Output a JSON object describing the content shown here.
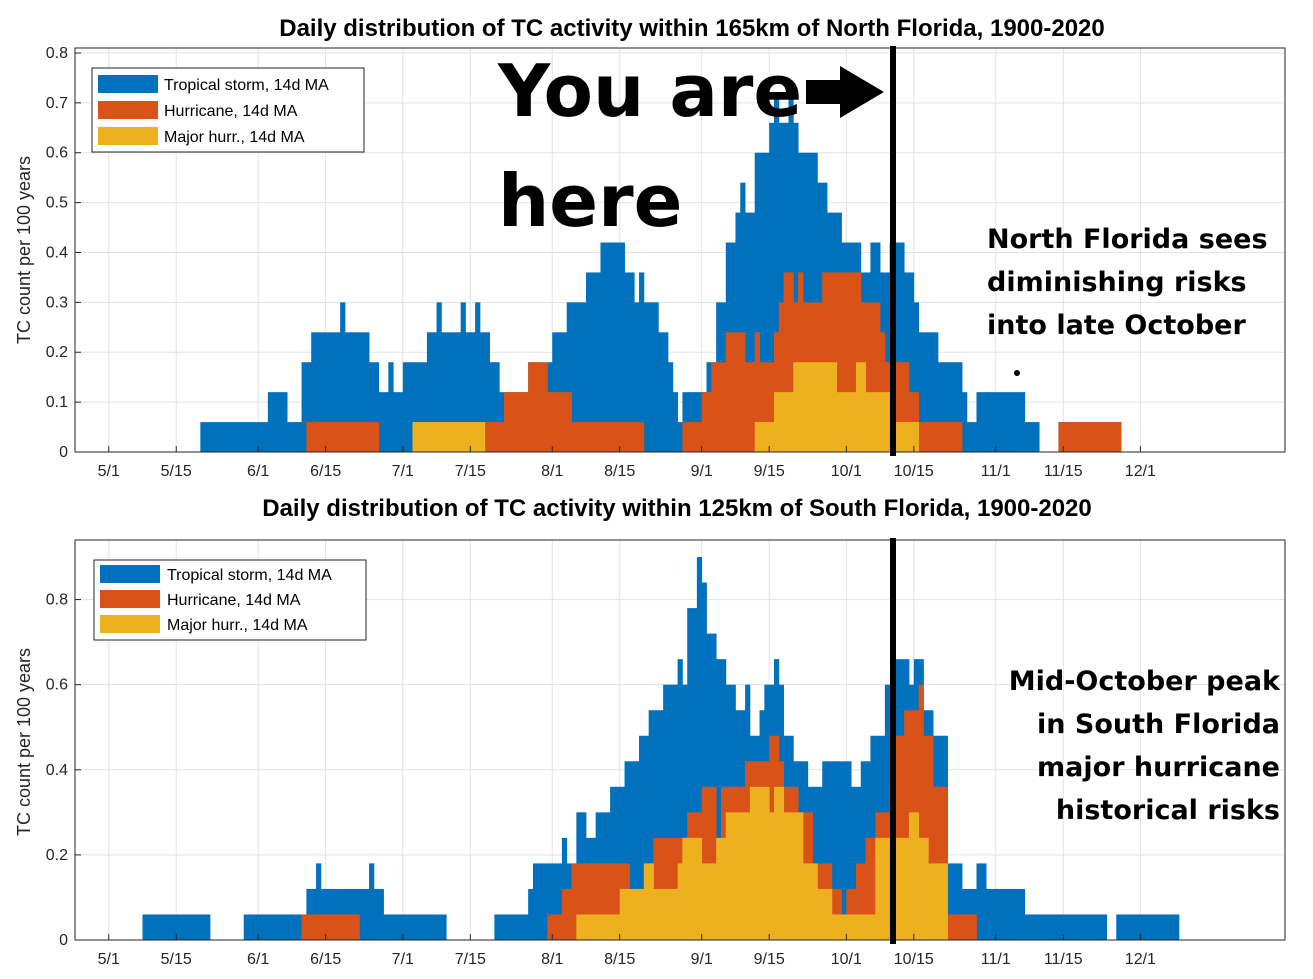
{
  "colors": {
    "ts": "#0072BD",
    "hu": "#D95319",
    "mh": "#EDB120"
  },
  "chart_data": [
    {
      "type": "bar",
      "title": "Daily distribution of TC activity within 165km of North Florida, 1900-2020",
      "xlabel": "",
      "ylabel": "TC count per 100 years",
      "x_start_date": "4/24",
      "x_end_date": "12/31",
      "x_ticks": [
        "5/1",
        "5/15",
        "6/1",
        "6/15",
        "7/1",
        "7/15",
        "8/1",
        "8/15",
        "9/1",
        "9/15",
        "10/1",
        "10/15",
        "11/1",
        "11/15",
        "12/1"
      ],
      "y_ticks": [
        "0",
        "0.1",
        "0.2",
        "0.3",
        "0.4",
        "0.5",
        "0.6",
        "0.7",
        "0.8"
      ],
      "ylim": [
        0,
        0.81
      ],
      "legend_position": "top-left",
      "grid": true,
      "series": [
        {
          "name": "Tropical storm, 14d MA",
          "key": "ts",
          "segments": [
            [
              "5/20",
              0.06
            ],
            [
              "6/3",
              0.12
            ],
            [
              "6/7",
              0.06
            ],
            [
              "6/10",
              0.18
            ],
            [
              "6/12",
              0.24
            ],
            [
              "6/18",
              0.3
            ],
            [
              "6/19",
              0.24
            ],
            [
              "6/24",
              0.18
            ],
            [
              "6/26",
              0.12
            ],
            [
              "6/28",
              0.18
            ],
            [
              "6/29",
              0.12
            ],
            [
              "7/1",
              0.18
            ],
            [
              "7/6",
              0.24
            ],
            [
              "7/8",
              0.3
            ],
            [
              "7/9",
              0.24
            ],
            [
              "7/13",
              0.3
            ],
            [
              "7/14",
              0.24
            ],
            [
              "7/16",
              0.3
            ],
            [
              "7/17",
              0.24
            ],
            [
              "7/19",
              0.18
            ],
            [
              "7/21",
              0.12
            ],
            [
              "7/27",
              0.18
            ],
            [
              "7/30",
              0.12
            ],
            [
              "7/31",
              0.18
            ],
            [
              "8/1",
              0.24
            ],
            [
              "8/4",
              0.3
            ],
            [
              "8/8",
              0.36
            ],
            [
              "8/11",
              0.42
            ],
            [
              "8/16",
              0.36
            ],
            [
              "8/18",
              0.3
            ],
            [
              "8/19",
              0.36
            ],
            [
              "8/20",
              0.3
            ],
            [
              "8/23",
              0.24
            ],
            [
              "8/25",
              0.18
            ],
            [
              "8/26",
              0.12
            ],
            [
              "8/27",
              0.06
            ],
            [
              "8/28",
              0.12
            ],
            [
              "9/2",
              0.18
            ],
            [
              "9/4",
              0.3
            ],
            [
              "9/6",
              0.42
            ],
            [
              "9/8",
              0.48
            ],
            [
              "9/9",
              0.54
            ],
            [
              "9/10",
              0.48
            ],
            [
              "9/12",
              0.6
            ],
            [
              "9/15",
              0.66
            ],
            [
              "9/16",
              0.72
            ],
            [
              "9/17",
              0.66
            ],
            [
              "9/19",
              0.72
            ],
            [
              "9/20",
              0.66
            ],
            [
              "9/21",
              0.6
            ],
            [
              "9/25",
              0.54
            ],
            [
              "9/27",
              0.48
            ],
            [
              "9/30",
              0.42
            ],
            [
              "10/4",
              0.36
            ],
            [
              "10/6",
              0.42
            ],
            [
              "10/8",
              0.36
            ],
            [
              "10/10",
              0.42
            ],
            [
              "10/13",
              0.36
            ],
            [
              "10/15",
              0.3
            ],
            [
              "10/16",
              0.24
            ],
            [
              "10/20",
              0.18
            ],
            [
              "10/25",
              0.12
            ],
            [
              "10/26",
              0.06
            ],
            [
              "10/28",
              0.12
            ],
            [
              "11/7",
              0.06
            ],
            [
              "11/10",
              null
            ],
            [
              "11/14",
              0.06
            ],
            [
              "11/27",
              null
            ]
          ]
        },
        {
          "name": "Hurricane, 14d MA",
          "key": "hu",
          "segments": [
            [
              "6/11",
              0.06
            ],
            [
              "6/26",
              null
            ],
            [
              "7/18",
              0.06
            ],
            [
              "7/22",
              0.12
            ],
            [
              "7/27",
              0.18
            ],
            [
              "7/31",
              0.12
            ],
            [
              "8/5",
              0.06
            ],
            [
              "8/20",
              null
            ],
            [
              "8/28",
              0.06
            ],
            [
              "9/1",
              0.12
            ],
            [
              "9/3",
              0.18
            ],
            [
              "9/6",
              0.24
            ],
            [
              "9/10",
              0.18
            ],
            [
              "9/12",
              0.24
            ],
            [
              "9/13",
              0.18
            ],
            [
              "9/16",
              0.24
            ],
            [
              "9/17",
              0.3
            ],
            [
              "9/18",
              0.36
            ],
            [
              "9/20",
              0.3
            ],
            [
              "9/21",
              0.36
            ],
            [
              "9/22",
              0.3
            ],
            [
              "9/26",
              0.36
            ],
            [
              "10/4",
              0.3
            ],
            [
              "10/8",
              0.24
            ],
            [
              "10/9",
              0.18
            ],
            [
              "10/14",
              0.12
            ],
            [
              "10/16",
              0.06
            ],
            [
              "10/25",
              null
            ],
            [
              "11/14",
              0.06
            ],
            [
              "11/27",
              null
            ]
          ]
        },
        {
          "name": "Major hurr., 14d MA",
          "key": "mh",
          "segments": [
            [
              "7/3",
              0.06
            ],
            [
              "7/18",
              null
            ],
            [
              "9/12",
              0.06
            ],
            [
              "9/16",
              0.12
            ],
            [
              "9/20",
              0.18
            ],
            [
              "9/29",
              0.12
            ],
            [
              "10/3",
              0.18
            ],
            [
              "10/5",
              0.12
            ],
            [
              "10/11",
              0.06
            ],
            [
              "10/16",
              null
            ]
          ]
        }
      ]
    },
    {
      "type": "bar",
      "title": "Daily distribution of TC activity within 125km of South Florida, 1900-2020",
      "xlabel": "",
      "ylabel": "TC count per 100 years",
      "x_start_date": "4/24",
      "x_end_date": "12/31",
      "x_ticks": [
        "5/1",
        "5/15",
        "6/1",
        "6/15",
        "7/1",
        "7/15",
        "8/1",
        "8/15",
        "9/1",
        "9/15",
        "10/1",
        "10/15",
        "11/1",
        "11/15",
        "12/1"
      ],
      "y_ticks": [
        "0",
        "0.2",
        "0.4",
        "0.6",
        "0.8"
      ],
      "ylim": [
        0,
        0.94
      ],
      "legend_position": "top-left",
      "grid": true,
      "series": [
        {
          "name": "Tropical storm, 14d MA",
          "key": "ts",
          "segments": [
            [
              "5/8",
              0.06
            ],
            [
              "5/22",
              null
            ],
            [
              "5/29",
              0.06
            ],
            [
              "6/11",
              0.12
            ],
            [
              "6/13",
              0.18
            ],
            [
              "6/14",
              0.12
            ],
            [
              "6/24",
              0.18
            ],
            [
              "6/25",
              0.12
            ],
            [
              "6/27",
              0.06
            ],
            [
              "7/10",
              null
            ],
            [
              "7/20",
              0.06
            ],
            [
              "7/27",
              0.12
            ],
            [
              "7/28",
              0.18
            ],
            [
              "8/3",
              0.24
            ],
            [
              "8/4",
              0.18
            ],
            [
              "8/6",
              0.3
            ],
            [
              "8/8",
              0.24
            ],
            [
              "8/10",
              0.3
            ],
            [
              "8/13",
              0.36
            ],
            [
              "8/16",
              0.42
            ],
            [
              "8/19",
              0.48
            ],
            [
              "8/21",
              0.54
            ],
            [
              "8/24",
              0.6
            ],
            [
              "8/27",
              0.66
            ],
            [
              "8/28",
              0.6
            ],
            [
              "8/29",
              0.78
            ],
            [
              "8/31",
              0.9
            ],
            [
              "9/1",
              0.84
            ],
            [
              "9/2",
              0.72
            ],
            [
              "9/4",
              0.66
            ],
            [
              "9/6",
              0.6
            ],
            [
              "9/8",
              0.54
            ],
            [
              "9/10",
              0.6
            ],
            [
              "9/11",
              0.48
            ],
            [
              "9/13",
              0.54
            ],
            [
              "9/14",
              0.6
            ],
            [
              "9/16",
              0.66
            ],
            [
              "9/17",
              0.6
            ],
            [
              "9/18",
              0.48
            ],
            [
              "9/20",
              0.42
            ],
            [
              "9/23",
              0.36
            ],
            [
              "9/26",
              0.42
            ],
            [
              "10/2",
              0.36
            ],
            [
              "10/4",
              0.42
            ],
            [
              "10/6",
              0.48
            ],
            [
              "10/9",
              0.6
            ],
            [
              "10/11",
              0.66
            ],
            [
              "10/14",
              0.6
            ],
            [
              "10/15",
              0.66
            ],
            [
              "10/17",
              0.54
            ],
            [
              "10/19",
              0.48
            ],
            [
              "10/22",
              0.18
            ],
            [
              "10/25",
              0.12
            ],
            [
              "10/28",
              0.18
            ],
            [
              "10/30",
              0.12
            ],
            [
              "11/7",
              0.06
            ],
            [
              "11/24",
              null
            ],
            [
              "11/26",
              0.06
            ],
            [
              "12/9",
              null
            ]
          ]
        },
        {
          "name": "Hurricane, 14d MA",
          "key": "hu",
          "segments": [
            [
              "6/10",
              0.06
            ],
            [
              "6/22",
              null
            ],
            [
              "7/31",
              0.06
            ],
            [
              "8/3",
              0.12
            ],
            [
              "8/5",
              0.18
            ],
            [
              "8/17",
              0.12
            ],
            [
              "8/20",
              0.18
            ],
            [
              "8/22",
              0.24
            ],
            [
              "8/29",
              0.3
            ],
            [
              "9/1",
              0.36
            ],
            [
              "9/4",
              0.24
            ],
            [
              "9/5",
              0.36
            ],
            [
              "9/10",
              0.42
            ],
            [
              "9/15",
              0.48
            ],
            [
              "9/17",
              0.42
            ],
            [
              "9/18",
              0.36
            ],
            [
              "9/21",
              0.3
            ],
            [
              "9/24",
              0.18
            ],
            [
              "9/28",
              0.12
            ],
            [
              "9/30",
              0.06
            ],
            [
              "10/1",
              0.12
            ],
            [
              "10/3",
              0.18
            ],
            [
              "10/5",
              0.24
            ],
            [
              "10/7",
              0.3
            ],
            [
              "10/10",
              0.36
            ],
            [
              "10/11",
              0.48
            ],
            [
              "10/13",
              0.54
            ],
            [
              "10/16",
              0.6
            ],
            [
              "10/17",
              0.48
            ],
            [
              "10/19",
              0.36
            ],
            [
              "10/22",
              0.06
            ],
            [
              "10/28",
              null
            ]
          ]
        },
        {
          "name": "Major hurr., 14d MA",
          "key": "mh",
          "segments": [
            [
              "8/6",
              0.06
            ],
            [
              "8/15",
              0.12
            ],
            [
              "8/20",
              0.18
            ],
            [
              "8/22",
              0.12
            ],
            [
              "8/27",
              0.18
            ],
            [
              "8/28",
              0.24
            ],
            [
              "9/1",
              0.18
            ],
            [
              "9/4",
              0.24
            ],
            [
              "9/6",
              0.3
            ],
            [
              "9/11",
              0.36
            ],
            [
              "9/15",
              0.3
            ],
            [
              "9/16",
              0.36
            ],
            [
              "9/18",
              0.3
            ],
            [
              "9/22",
              0.18
            ],
            [
              "9/25",
              0.12
            ],
            [
              "9/28",
              0.06
            ],
            [
              "10/7",
              0.24
            ],
            [
              "10/14",
              0.3
            ],
            [
              "10/16",
              0.24
            ],
            [
              "10/18",
              0.18
            ],
            [
              "10/22",
              null
            ]
          ]
        }
      ]
    }
  ],
  "annotations": {
    "arrow_text_line1": "You are",
    "arrow_text_line2": "here",
    "top_note_line1": "North Florida sees",
    "top_note_line2": "diminishing risks",
    "top_note_line3": "into late October",
    "bottom_note_line1": "Mid-October peak",
    "bottom_note_line2": "in South Florida",
    "bottom_note_line3": "major hurricane",
    "bottom_note_line4": "historical risks"
  }
}
